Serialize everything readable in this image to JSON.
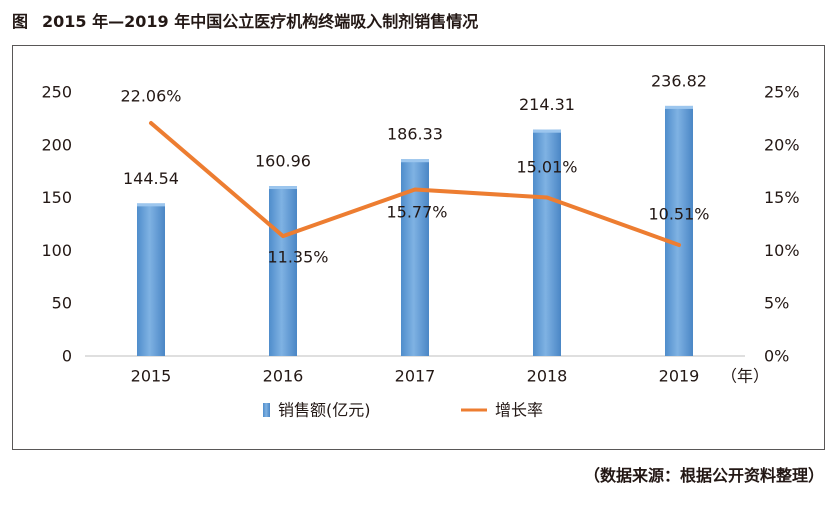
{
  "title_prefix": "图",
  "title": "2015 年—2019 年中国公立医疗机构终端吸入制剂销售情况",
  "source": "（数据来源：根据公开资料整理）",
  "colors": {
    "bar": "#5B9BD5",
    "line": "#ED7D31",
    "text": "#231815",
    "frame": "#595757"
  },
  "chart_data": {
    "type": "bar",
    "categories": [
      "2015",
      "2016",
      "2017",
      "2018",
      "2019"
    ],
    "x_unit": "（年）",
    "series": [
      {
        "name": "销售额(亿元)",
        "type": "bar",
        "axis": "left",
        "values": [
          144.54,
          160.96,
          186.33,
          214.31,
          236.82
        ],
        "labels": [
          "144.54",
          "160.96",
          "186.33",
          "214.31",
          "236.82"
        ]
      },
      {
        "name": "增长率",
        "type": "line",
        "axis": "right",
        "values": [
          22.06,
          11.35,
          15.77,
          15.01,
          10.51
        ],
        "labels": [
          "22.06%",
          "11.35%",
          "15.77%",
          "15.01%",
          "10.51%"
        ]
      }
    ],
    "y_left": {
      "ticks": [
        "0",
        "50",
        "100",
        "150",
        "200",
        "250"
      ],
      "range": [
        0,
        250
      ]
    },
    "y_right": {
      "ticks": [
        "0%",
        "5%",
        "10%",
        "15%",
        "20%",
        "25%"
      ],
      "range": [
        0,
        25
      ]
    },
    "grid": false,
    "legend_position": "bottom"
  }
}
